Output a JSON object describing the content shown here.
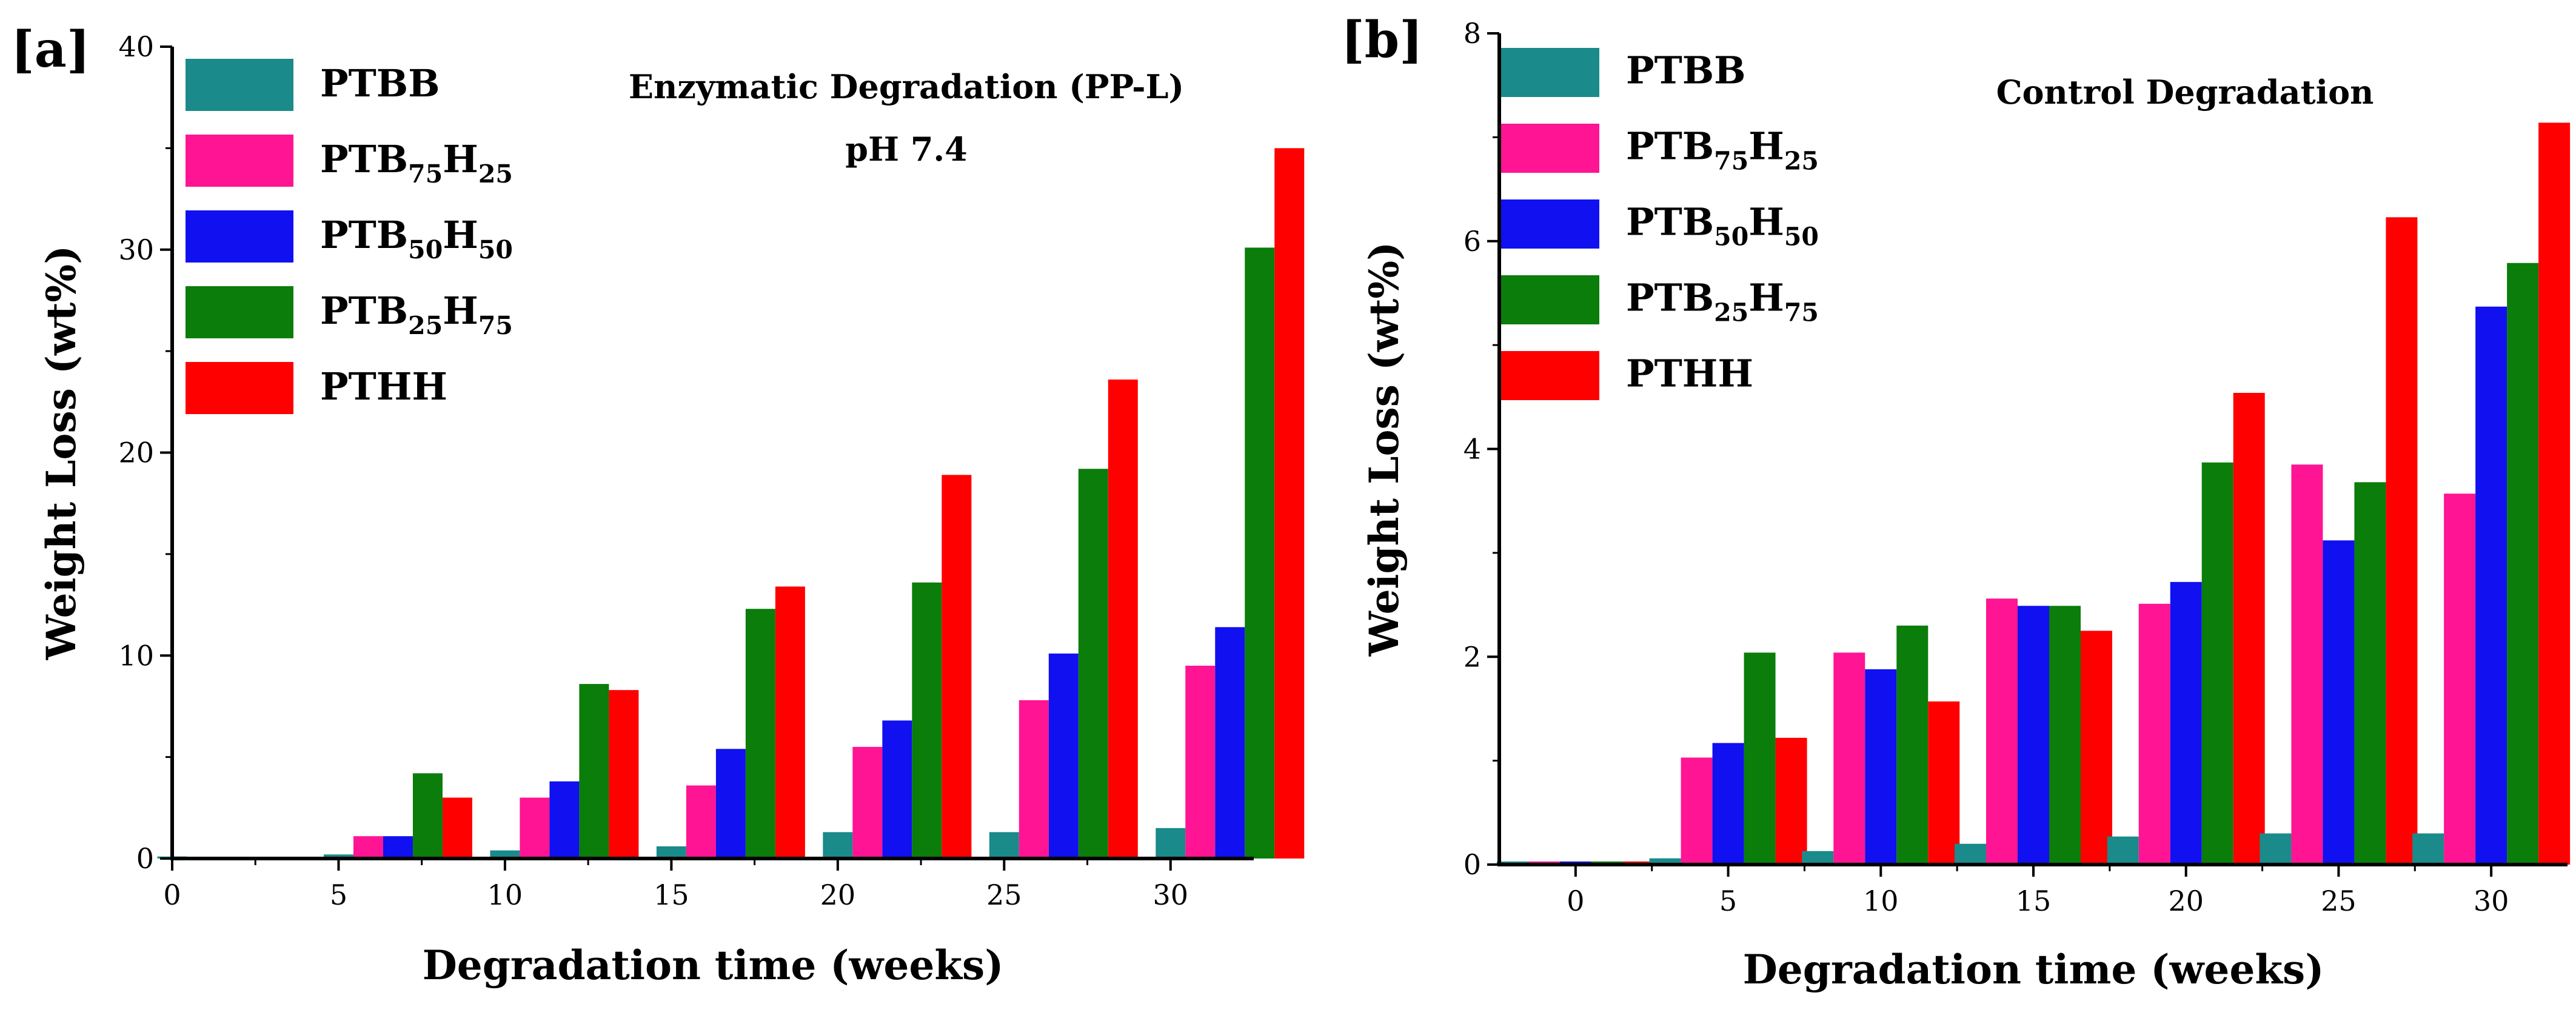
{
  "figure_panels": [
    "[a]",
    "[b]"
  ],
  "colors": {
    "PTBB": "#1a8a8a",
    "PTB75H25": "#ff1493",
    "PTB50H50": "#1010f0",
    "PTB25H75": "#0a7d0a",
    "PTHH": "#ff0000",
    "axis": "#000000",
    "background": "#ffffff"
  },
  "chart_data": [
    {
      "panel_label": "[a]",
      "type": "bar",
      "title": "Enzymatic Degradation (PP-L)",
      "subtitle": "pH 7.4",
      "xlabel": "Degradation time (weeks)",
      "ylabel": "Weight Loss (wt%)",
      "categories": [
        0,
        5,
        10,
        15,
        20,
        25,
        30
      ],
      "xlim": [
        0,
        32.5
      ],
      "ylim": [
        0,
        40
      ],
      "xticks": [
        "0",
        "5",
        "10",
        "15",
        "20",
        "25",
        "30"
      ],
      "yticks": [
        "0",
        "10",
        "20",
        "30",
        "40"
      ],
      "legend_position": "top-left",
      "grid": false,
      "series": [
        {
          "name": "PTBB",
          "sub": [],
          "values": [
            0.1,
            0.2,
            0.4,
            0.6,
            1.3,
            1.3,
            1.5
          ]
        },
        {
          "name": "PTB",
          "sub": [
            "75",
            "H",
            "25"
          ],
          "values": [
            0,
            1.1,
            3.0,
            3.6,
            5.5,
            7.8,
            9.5
          ]
        },
        {
          "name": "PTB",
          "sub": [
            "50",
            "H",
            "50"
          ],
          "values": [
            0,
            1.1,
            3.8,
            5.4,
            6.8,
            10.1,
            11.4
          ]
        },
        {
          "name": "PTB",
          "sub": [
            "25",
            "H",
            "75"
          ],
          "values": [
            0,
            4.2,
            8.6,
            12.3,
            13.6,
            19.2,
            30.1
          ]
        },
        {
          "name": "PTHH",
          "sub": [],
          "values": [
            0,
            3.0,
            8.3,
            13.4,
            18.9,
            23.6,
            35.0
          ]
        }
      ]
    },
    {
      "panel_label": "[b]",
      "type": "bar",
      "title": "Control Degradation",
      "subtitle": "",
      "xlabel": "Degradation time (weeks)",
      "ylabel": "Weight Loss (wt%)",
      "categories": [
        0,
        5,
        10,
        15,
        20,
        25,
        30
      ],
      "xlim": [
        -2.5,
        32.5
      ],
      "ylim": [
        0,
        8
      ],
      "xticks": [
        "0",
        "5",
        "10",
        "15",
        "20",
        "25",
        "30"
      ],
      "yticks": [
        "0",
        "2",
        "4",
        "6",
        "8"
      ],
      "legend_position": "top-left",
      "grid": false,
      "series": [
        {
          "name": "PTBB",
          "sub": [],
          "values": [
            0.03,
            0.06,
            0.13,
            0.2,
            0.27,
            0.3,
            0.3
          ]
        },
        {
          "name": "PTB",
          "sub": [
            "75",
            "H",
            "25"
          ],
          "values": [
            0.03,
            1.03,
            2.04,
            2.56,
            2.51,
            3.85,
            3.57
          ]
        },
        {
          "name": "PTB",
          "sub": [
            "50",
            "H",
            "50"
          ],
          "values": [
            0.03,
            1.17,
            1.88,
            2.49,
            2.72,
            3.12,
            5.37
          ]
        },
        {
          "name": "PTB",
          "sub": [
            "25",
            "H",
            "75"
          ],
          "values": [
            0.03,
            2.04,
            2.3,
            2.49,
            3.87,
            3.68,
            5.79
          ]
        },
        {
          "name": "PTHH",
          "sub": [],
          "values": [
            0.03,
            1.22,
            1.57,
            2.25,
            4.54,
            6.23,
            7.14
          ]
        }
      ]
    }
  ]
}
